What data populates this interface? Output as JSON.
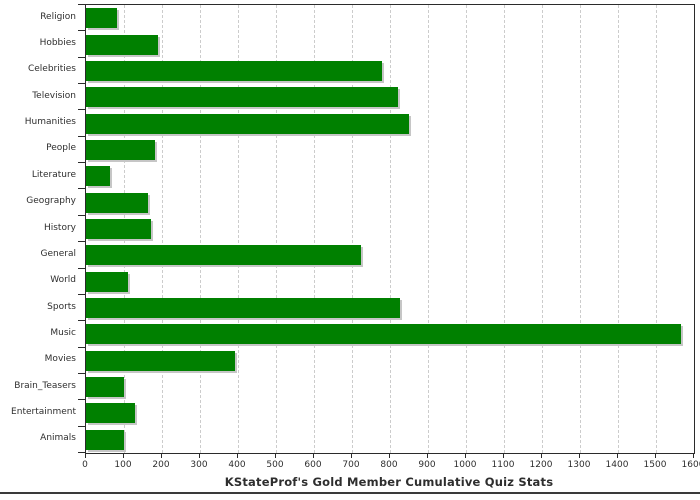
{
  "chart_data": {
    "type": "bar",
    "orientation": "horizontal",
    "title": "KStateProf's Gold Member Cumulative Quiz Stats",
    "categories": [
      "Religion",
      "Hobbies",
      "Celebrities",
      "Television",
      "Humanities",
      "People",
      "Literature",
      "Geography",
      "History",
      "General",
      "World",
      "Sports",
      "Music",
      "Movies",
      "Brain_Teasers",
      "Entertainment",
      "Animals"
    ],
    "values": [
      81,
      190,
      780,
      822,
      851,
      182,
      62,
      162,
      171,
      724,
      111,
      825,
      1566,
      392,
      101,
      130,
      101
    ],
    "xlabel": "",
    "ylabel": "",
    "xlim": [
      0,
      1600
    ],
    "x_ticks": [
      0,
      100,
      200,
      300,
      400,
      500,
      600,
      700,
      800,
      900,
      1000,
      1100,
      1200,
      1300,
      1400,
      1500,
      1600
    ],
    "grid": "vertical-dashed",
    "legend": "none",
    "colors": {
      "bar_fill": "#008000",
      "bar_shadow": "#c6c6c6",
      "gridline": "#cccccc",
      "frame": "#2b2b2b",
      "text": "#2e2e2e"
    }
  }
}
